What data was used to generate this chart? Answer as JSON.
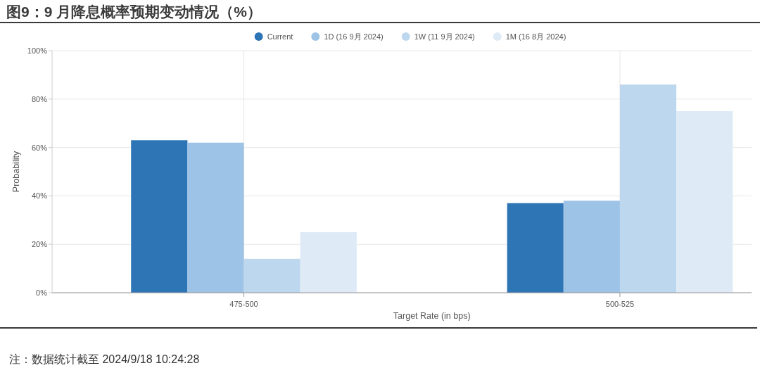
{
  "chart_data": {
    "type": "bar",
    "title": "图9：9 月降息概率预期变动情况（%）",
    "categories": [
      "475-500",
      "500-525"
    ],
    "series": [
      {
        "name": "Current",
        "color": "#2e75b6",
        "values": [
          63,
          37
        ]
      },
      {
        "name": "1D (16 9月 2024)",
        "color": "#9dc3e6",
        "values": [
          62,
          38
        ]
      },
      {
        "name": "1W (11 9月 2024)",
        "color": "#bdd7ee",
        "values": [
          14,
          86
        ]
      },
      {
        "name": "1M (16 8月 2024)",
        "color": "#deebf7",
        "values": [
          25,
          75
        ]
      }
    ],
    "xlabel": "Target Rate (in bps)",
    "ylabel": "Probability",
    "ylim": [
      0,
      100
    ],
    "yticks": [
      {
        "value": 0,
        "label": "0%"
      },
      {
        "value": 20,
        "label": "20%"
      },
      {
        "value": 40,
        "label": "40%"
      },
      {
        "value": 60,
        "label": "60%"
      },
      {
        "value": 80,
        "label": "80%"
      },
      {
        "value": 100,
        "label": "100%"
      }
    ],
    "grid": true,
    "legend": "top",
    "annotations": [
      "注：数据统计截至 2024/9/18 10:24:28"
    ]
  }
}
